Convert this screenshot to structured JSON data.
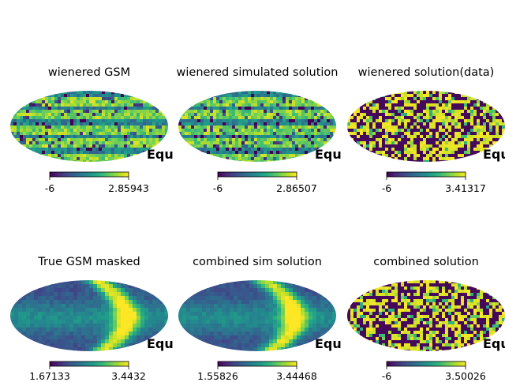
{
  "chart_data": [
    {
      "type": "heatmap",
      "title": "wienered GSM",
      "coord": "Equ",
      "colorbar": {
        "min": "-6",
        "max": "2.85943"
      },
      "colormap": "viridis"
    },
    {
      "type": "heatmap",
      "title": "wienered simulated solution",
      "coord": "Equ",
      "colorbar": {
        "min": "-6",
        "max": "2.86507"
      },
      "colormap": "viridis"
    },
    {
      "type": "heatmap",
      "title": "wienered solution(data)",
      "coord": "Equ",
      "colorbar": {
        "min": "-6",
        "max": "3.41317"
      },
      "colormap": "viridis"
    },
    {
      "type": "heatmap",
      "title": "True GSM masked",
      "coord": "Equ",
      "colorbar": {
        "min": "1.67133",
        "max": "3.4432"
      },
      "colormap": "viridis"
    },
    {
      "type": "heatmap",
      "title": "combined sim solution",
      "coord": "Equ",
      "colorbar": {
        "min": "1.55826",
        "max": "3.44468"
      },
      "colormap": "viridis"
    },
    {
      "type": "heatmap",
      "title": "combined solution",
      "coord": "Equ",
      "colorbar": {
        "min": "-6",
        "max": "3.50026"
      },
      "colormap": "viridis"
    }
  ]
}
